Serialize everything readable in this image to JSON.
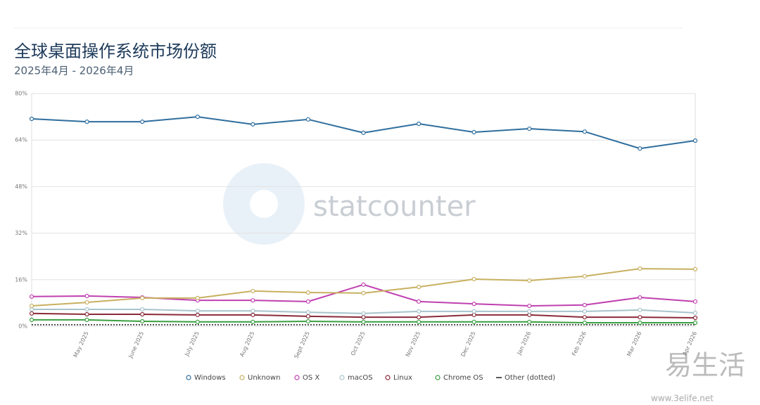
{
  "chart_data": {
    "type": "line",
    "title": "全球桌面操作系统市场份额",
    "subtitle": "2025年4月 - 2026年4月",
    "watermark": "statcounter",
    "site_mark": "易生活",
    "site_url": "www.3elife.net",
    "categories": [
      null,
      "May 2025",
      "June 2025",
      "July 2025",
      "Aug 2025",
      "Sept 2025",
      "Oct 2025",
      "Nov 2025",
      "Dec 2025",
      "Jan 2026",
      "Feb 2026",
      "Mar 2026",
      "Apr 2026"
    ],
    "ylim": [
      0,
      80
    ],
    "yticks": [
      {
        "value": 0,
        "label": "0%"
      },
      {
        "value": 16,
        "label": "16%"
      },
      {
        "value": 32,
        "label": "32%"
      },
      {
        "value": 48,
        "label": "48%"
      },
      {
        "value": 64,
        "label": "64%"
      },
      {
        "value": 80,
        "label": "80%"
      }
    ],
    "grid": true,
    "legend": "bottom",
    "series": [
      {
        "name": "Windows",
        "color": "#2f6e9e",
        "values": [
          71.3,
          70.3,
          70.3,
          72.0,
          69.4,
          71.1,
          66.5,
          69.6,
          66.7,
          67.9,
          66.9,
          61.1,
          63.8
        ]
      },
      {
        "name": "Unknown",
        "color": "#c8b060",
        "values": [
          7.0,
          8.2,
          9.7,
          9.7,
          12.1,
          11.6,
          11.4,
          13.5,
          16.2,
          15.7,
          17.2,
          19.8,
          19.6
        ]
      },
      {
        "name": "OS X",
        "color": "#c040b0",
        "values": [
          10.2,
          10.4,
          9.9,
          8.9,
          8.9,
          8.5,
          14.3,
          8.5,
          7.7,
          7.0,
          7.3,
          9.9,
          8.5
        ]
      },
      {
        "name": "macOS",
        "color": "#a8c4cc",
        "values": [
          5.8,
          5.8,
          5.8,
          5.3,
          5.3,
          4.8,
          4.4,
          5.1,
          5.1,
          5.1,
          5.1,
          5.6,
          4.6
        ]
      },
      {
        "name": "Linux",
        "color": "#8a2a3a",
        "values": [
          4.4,
          4.1,
          4.1,
          3.9,
          3.9,
          3.4,
          3.1,
          3.1,
          3.9,
          3.9,
          3.1,
          3.1,
          2.9
        ]
      },
      {
        "name": "Chrome OS",
        "color": "#3aa040",
        "values": [
          2.2,
          2.2,
          1.7,
          1.5,
          1.5,
          1.7,
          1.5,
          1.5,
          1.5,
          1.5,
          1.2,
          1.2,
          1.2
        ]
      },
      {
        "name": "Other (dotted)",
        "color": "#222222",
        "style": "dotted",
        "values": [
          0.5,
          0.5,
          0.5,
          0.5,
          0.5,
          0.5,
          0.5,
          0.5,
          0.5,
          0.5,
          0.5,
          0.5,
          0.5
        ]
      }
    ]
  }
}
